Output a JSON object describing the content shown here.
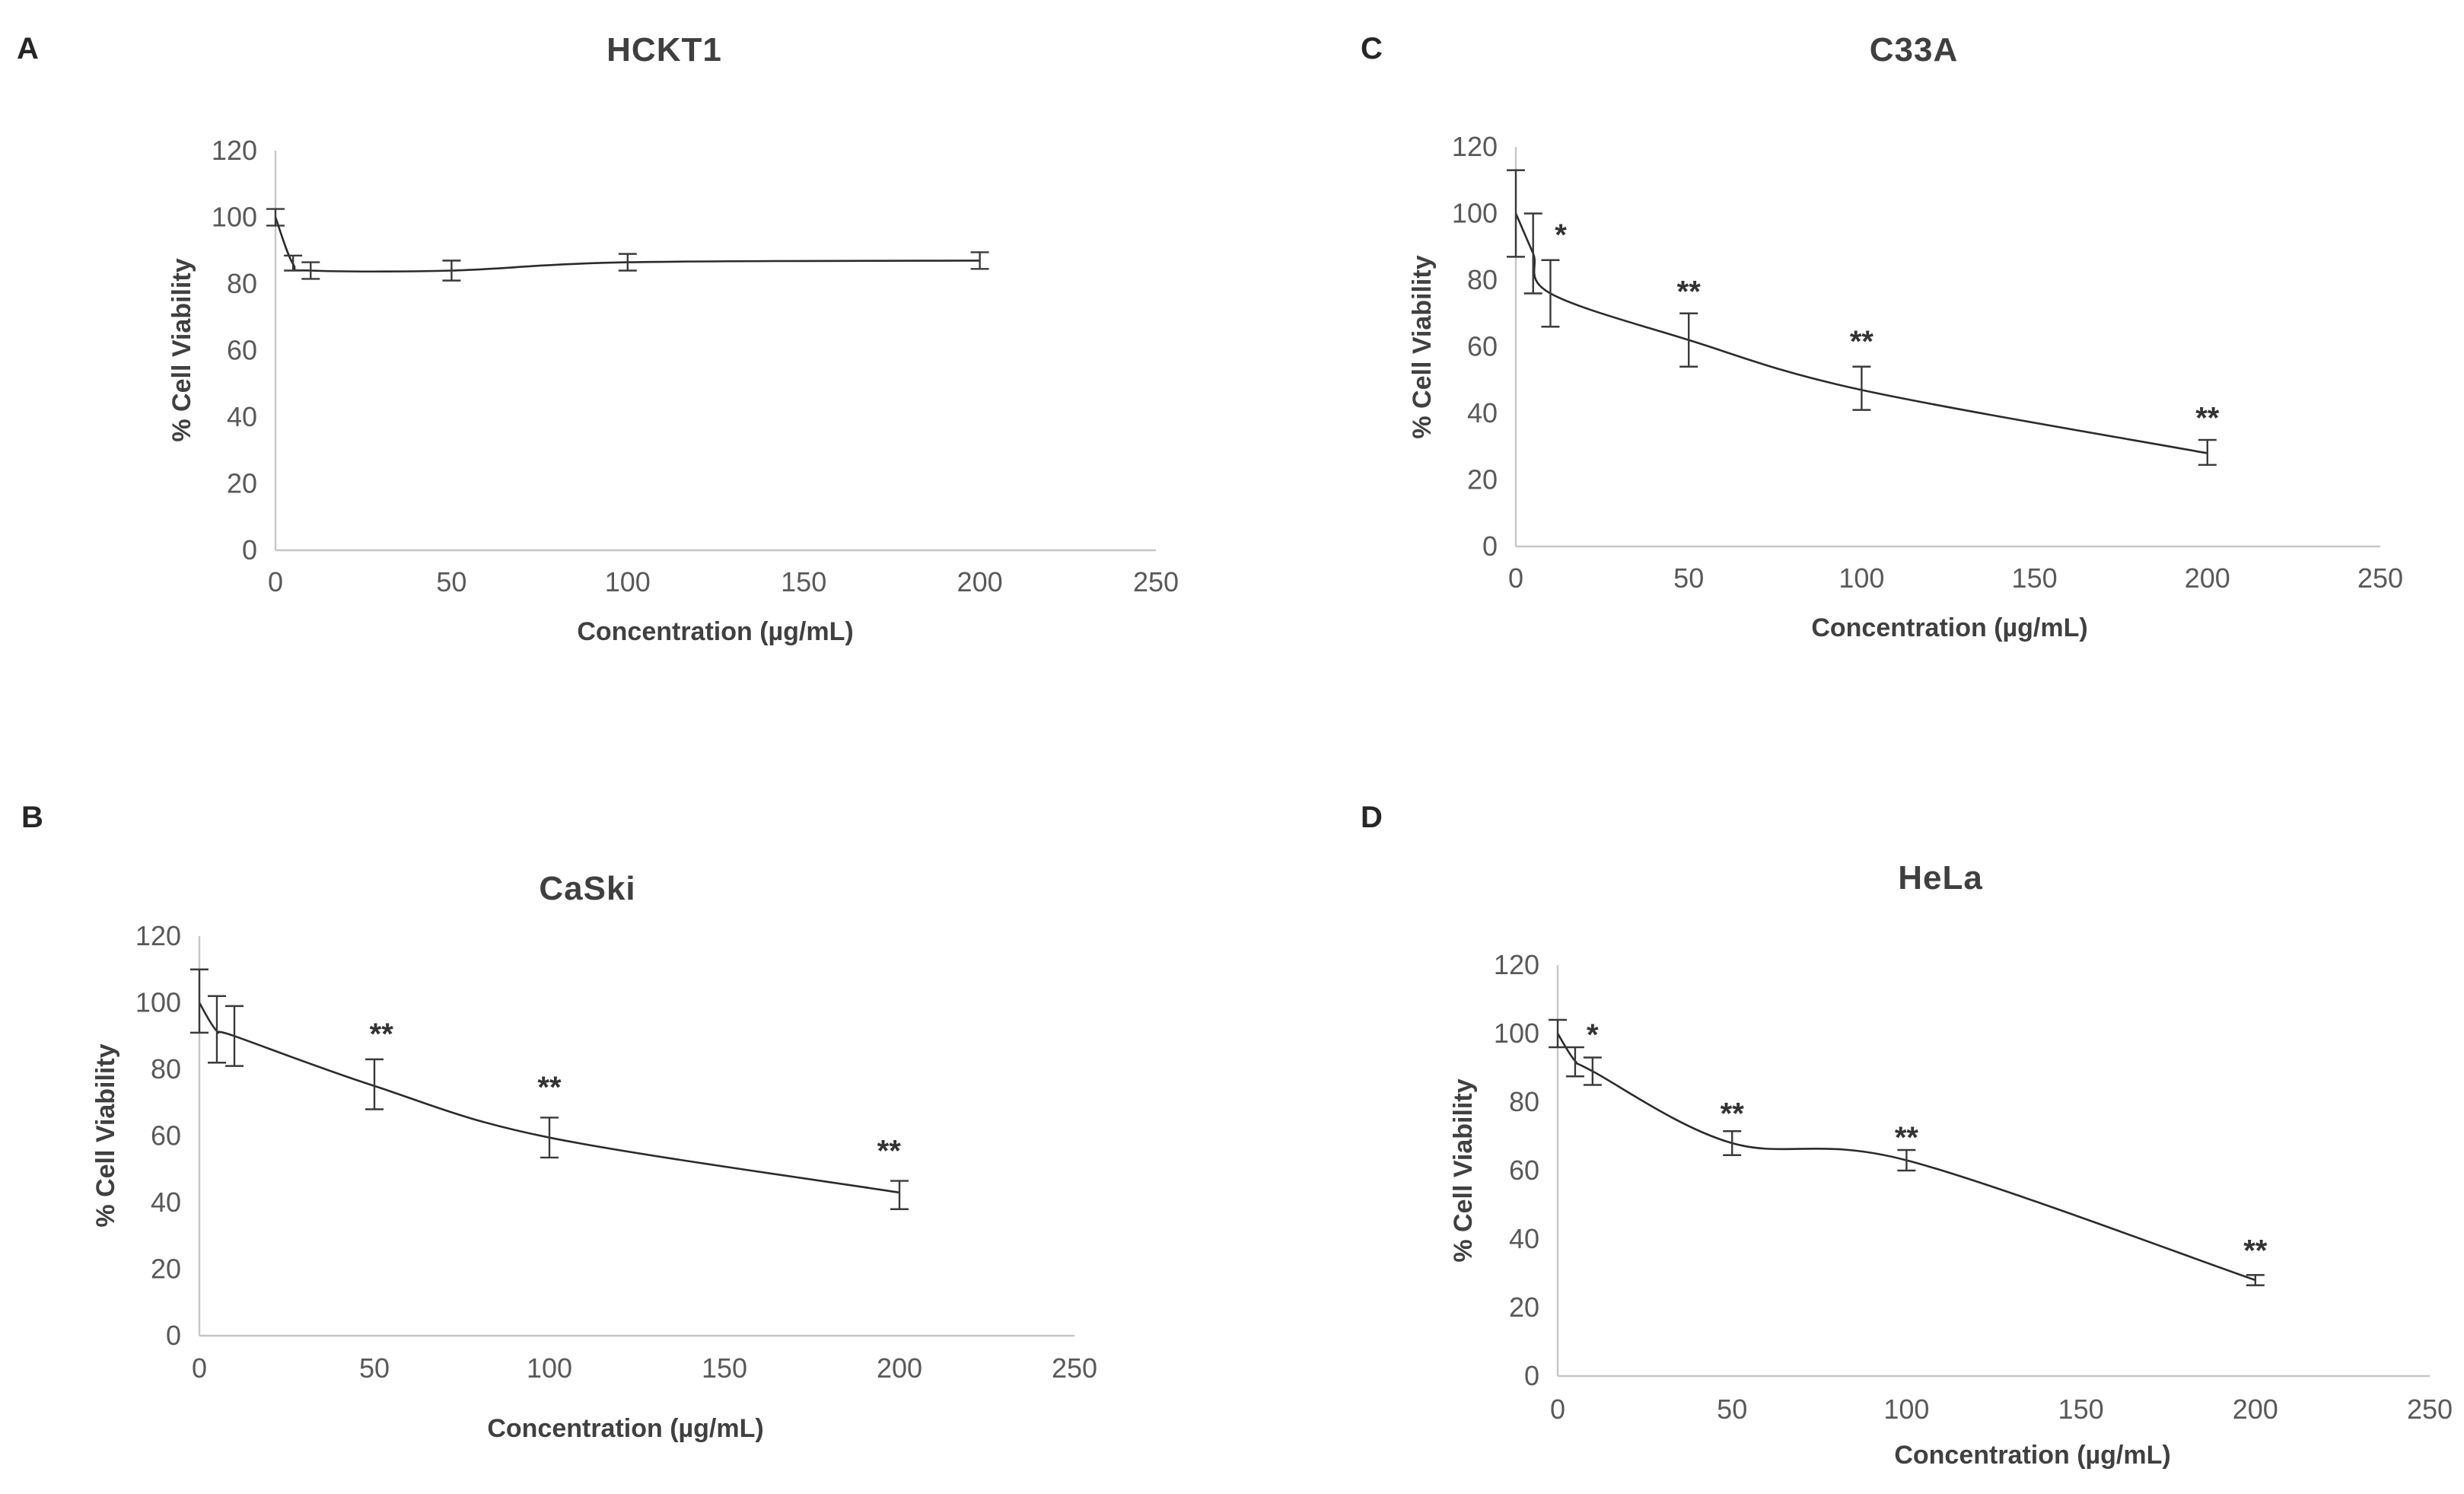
{
  "figure": {
    "background": "#ffffff",
    "line_color": "#2b2b2b",
    "error_bar_color": "#3a3a3a",
    "axis_color": "#c6c6c6",
    "tick_color": "#595959",
    "title_color": "#3f3f3f"
  },
  "chart_data": [
    {
      "panel_label": "A",
      "type": "line",
      "title": "HCKT1",
      "xlabel": "Concentration (µg/mL)",
      "ylabel": "% Cell Viability",
      "xlim": [
        0,
        250
      ],
      "ylim": [
        0,
        120
      ],
      "x_ticks": [
        0,
        50,
        100,
        150,
        200,
        250
      ],
      "y_ticks": [
        0,
        20,
        40,
        60,
        80,
        100,
        120
      ],
      "x": [
        0,
        5,
        10,
        50,
        100,
        200
      ],
      "y": [
        100,
        86,
        84,
        84,
        86.5,
        87
      ],
      "err_low": [
        97.5,
        84,
        81.5,
        81,
        84,
        84.5
      ],
      "err_high": [
        102.5,
        88.5,
        86.5,
        87,
        89,
        89.5
      ],
      "annotations": [],
      "grid": false,
      "legend": "none"
    },
    {
      "panel_label": "B",
      "type": "line",
      "title": "CaSki",
      "xlabel": "Concentration (µg/mL)",
      "ylabel": "% Cell Viability",
      "xlim": [
        0,
        250
      ],
      "ylim": [
        0,
        120
      ],
      "x_ticks": [
        0,
        50,
        100,
        150,
        200,
        250
      ],
      "y_ticks": [
        0,
        20,
        40,
        60,
        80,
        100,
        120
      ],
      "x": [
        0,
        5,
        10,
        50,
        100,
        200
      ],
      "y": [
        100,
        91.5,
        90,
        75,
        59.5,
        43
      ],
      "err_low": [
        91,
        82,
        81,
        68,
        53.5,
        38
      ],
      "err_high": [
        110,
        102,
        99,
        83,
        65.5,
        46.5
      ],
      "annotations": [
        {
          "text": "**",
          "x": 52,
          "y": 93
        },
        {
          "text": "**",
          "x": 100,
          "y": 77
        },
        {
          "text": "**",
          "x": 197,
          "y": 58
        }
      ],
      "grid": false,
      "legend": "none"
    },
    {
      "panel_label": "C",
      "type": "line",
      "title": "C33A",
      "xlabel": "Concentration (µg/mL)",
      "ylabel": "% Cell Viability",
      "xlim": [
        0,
        250
      ],
      "ylim": [
        0,
        120
      ],
      "x_ticks": [
        0,
        50,
        100,
        150,
        200,
        250
      ],
      "y_ticks": [
        0,
        20,
        40,
        60,
        80,
        100,
        120
      ],
      "x": [
        0,
        5,
        10,
        50,
        100,
        200
      ],
      "y": [
        100,
        88,
        76,
        62,
        47,
        28
      ],
      "err_low": [
        87,
        76,
        66,
        54,
        41,
        24.5
      ],
      "err_high": [
        113,
        100,
        86,
        70,
        54,
        32
      ],
      "annotations": [
        {
          "text": "*",
          "x": 13,
          "y": 96
        },
        {
          "text": "**",
          "x": 50,
          "y": 79
        },
        {
          "text": "**",
          "x": 100,
          "y": 64
        },
        {
          "text": "**",
          "x": 200,
          "y": 41
        }
      ],
      "grid": false,
      "legend": "none"
    },
    {
      "panel_label": "D",
      "type": "line",
      "title": "HeLa",
      "xlabel": "Concentration (µg/mL)",
      "ylabel": "% Cell Viability",
      "xlim": [
        0,
        250
      ],
      "ylim": [
        0,
        120
      ],
      "x_ticks": [
        0,
        50,
        100,
        150,
        200,
        250
      ],
      "y_ticks": [
        0,
        20,
        40,
        60,
        80,
        100,
        120
      ],
      "x": [
        0,
        5,
        10,
        50,
        100,
        200
      ],
      "y": [
        100,
        92,
        89,
        68,
        63,
        28
      ],
      "err_low": [
        96,
        87.5,
        85,
        64.5,
        60,
        26.5
      ],
      "err_high": [
        104,
        96,
        93,
        71.5,
        66,
        29.5
      ],
      "annotations": [
        {
          "text": "*",
          "x": 10,
          "y": 102
        },
        {
          "text": "**",
          "x": 50,
          "y": 79
        },
        {
          "text": "**",
          "x": 100,
          "y": 72
        },
        {
          "text": "**",
          "x": 200,
          "y": 39
        }
      ],
      "grid": false,
      "legend": "none"
    }
  ]
}
